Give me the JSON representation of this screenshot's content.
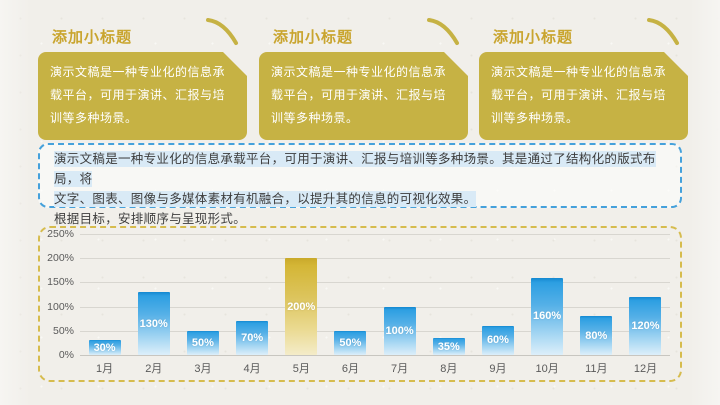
{
  "cards": [
    {
      "title": "添加小标题",
      "body": "演示文稿是一种专业化的信息承载平台，可用于演讲、汇报与培训等多种场景。"
    },
    {
      "title": "添加小标题",
      "body": "演示文稿是一种专业化的信息承载平台，可用于演讲、汇报与培训等多种场景。"
    },
    {
      "title": "添加小标题",
      "body": "演示文稿是一种专业化的信息承载平台，可用于演讲、汇报与培训等多种场景。"
    }
  ],
  "summary": {
    "line1": "演示文稿是一种专业化的信息承载平台，可用于演讲、汇报与培训等多种场景。其是通过了结构化的版式布局，将",
    "line2": "文字、图表、图像与多媒体素材有机融合，以提升其的信息的可视化效果。",
    "line3": "根据目标，安排顺序与呈现形式。"
  },
  "chart_data": {
    "type": "bar",
    "categories": [
      "1月",
      "2月",
      "3月",
      "4月",
      "5月",
      "6月",
      "7月",
      "8月",
      "9月",
      "10月",
      "11月",
      "12月"
    ],
    "values": [
      30,
      130,
      50,
      70,
      200,
      50,
      100,
      35,
      60,
      160,
      80,
      120
    ],
    "value_labels": [
      "30%",
      "130%",
      "50%",
      "70%",
      "200%",
      "50%",
      "100%",
      "35%",
      "60%",
      "160%",
      "80%",
      "120%"
    ],
    "highlight_index": 4,
    "title": "",
    "xlabel": "",
    "ylabel": "",
    "ylim": [
      0,
      250
    ],
    "y_ticks": [
      "250%",
      "200%",
      "150%",
      "100%",
      "50%",
      "0%"
    ],
    "grid": true,
    "legend": "none",
    "bar_color": "#2d9fe2",
    "highlight_bar_color": "#d4b636"
  },
  "colors": {
    "gold_dark": "#c9a52f",
    "gold_box": "#c6b244",
    "gold_border": "#d6bc4e",
    "blue_border": "#45a1db",
    "blue_highlight": "#d9eaf6",
    "text_dark": "#3d3d3d",
    "background": "#f1efea"
  }
}
